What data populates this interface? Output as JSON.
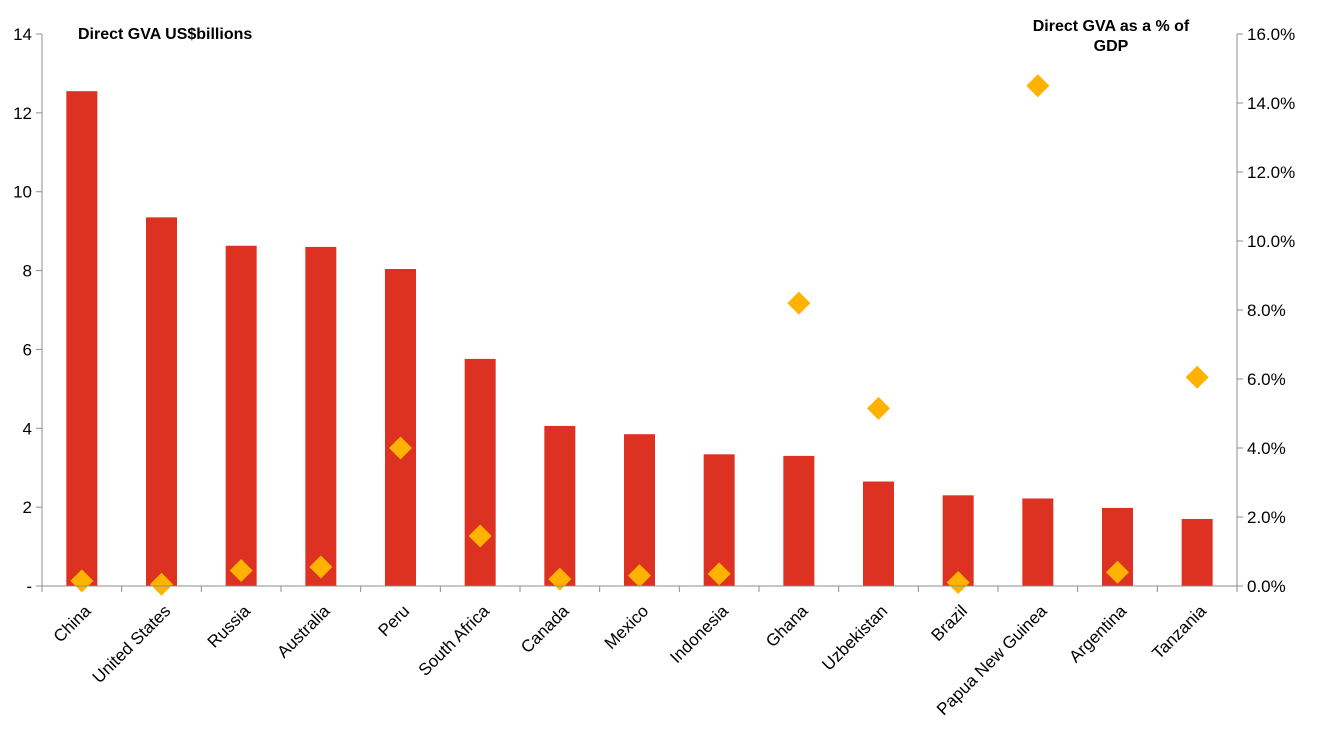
{
  "chart_data": {
    "type": "bar",
    "categories": [
      "China",
      "United States",
      "Russia",
      "Australia",
      "Peru",
      "South Africa",
      "Canada",
      "Mexico",
      "Indonesia",
      "Ghana",
      "Uzbekistan",
      "Brazil",
      "Papua New Guinea",
      "Argentina",
      "Tanzania"
    ],
    "series": [
      {
        "name": "Direct GVA US$billions",
        "type": "bar",
        "axis": "left",
        "color": "#dd3222",
        "values": [
          12.55,
          9.35,
          8.63,
          8.6,
          8.04,
          5.76,
          4.06,
          3.85,
          3.34,
          3.3,
          2.65,
          2.3,
          2.22,
          1.98,
          1.7
        ]
      },
      {
        "name": "Direct GVA as a % of GDP",
        "type": "scatter",
        "marker": "diamond",
        "axis": "right",
        "color": "#ffb200",
        "values": [
          0.15,
          0.05,
          0.45,
          0.55,
          4.0,
          1.45,
          0.2,
          0.3,
          0.35,
          8.2,
          5.15,
          0.1,
          14.5,
          0.4,
          6.05
        ]
      }
    ],
    "left_axis": {
      "title": "Direct GVA US$billions",
      "ylim": [
        0,
        14
      ],
      "ticks": [
        0,
        2,
        4,
        6,
        8,
        10,
        12,
        14
      ],
      "tick_labels": [
        "-",
        "2",
        "4",
        "6",
        "8",
        "10",
        "12",
        "14"
      ]
    },
    "right_axis": {
      "title": "Direct GVA as a % of GDP",
      "title_lines": [
        "Direct GVA as a % of",
        "GDP"
      ],
      "ylim": [
        0,
        16
      ],
      "ticks": [
        0,
        2,
        4,
        6,
        8,
        10,
        12,
        14,
        16
      ],
      "tick_labels": [
        "0.0%",
        "2.0%",
        "4.0%",
        "6.0%",
        "8.0%",
        "10.0%",
        "12.0%",
        "14.0%",
        "16.0%"
      ]
    },
    "grid": false,
    "legend": "none"
  }
}
